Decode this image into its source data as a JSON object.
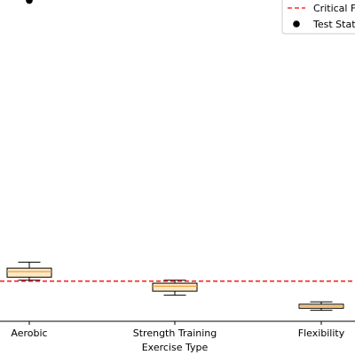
{
  "chart_data": {
    "type": "box",
    "categories": [
      "Aerobic",
      "Strength Training",
      "Flexibility"
    ],
    "xlabel": "Exercise Type",
    "ylabel": "",
    "title": "",
    "ylim": [
      -1.0,
      16.0
    ],
    "grid": false,
    "legend_position": "top-right",
    "boxes": [
      {
        "category": "Aerobic",
        "whisker_low": 1.05,
        "q1": 1.2,
        "median": 1.48,
        "q3": 1.65,
        "whisker_high": 1.95
      },
      {
        "category": "Strength Training",
        "whisker_low": 0.3,
        "q1": 0.5,
        "median": 0.75,
        "q3": 0.9,
        "whisker_high": 1.05
      },
      {
        "category": "Flexibility",
        "whisker_low": -0.45,
        "q1": -0.35,
        "median": -0.25,
        "q3": -0.15,
        "whisker_high": -0.03
      }
    ],
    "critical_line": {
      "name": "Critical F",
      "value": 1.0,
      "color": "#ff0000"
    },
    "test_statistic": {
      "name": "Test Stat",
      "category": "Aerobic",
      "value": 15.0,
      "color": "#000000"
    },
    "colors": {
      "box_fill": "#fde7c5",
      "box_edge": "#000000",
      "median": "#e8a33d"
    }
  }
}
